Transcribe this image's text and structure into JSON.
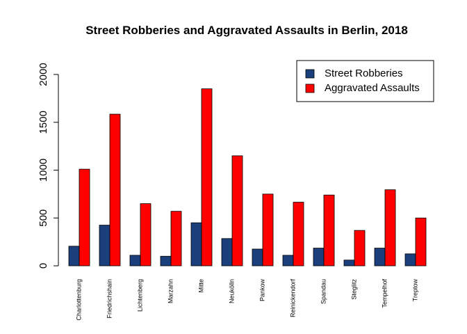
{
  "chart_data": {
    "type": "bar",
    "title": "Street Robberies and Aggravated Assaults in Berlin, 2018",
    "xlabel": "",
    "ylabel": "",
    "ylim": [
      0,
      2000
    ],
    "yticks": [
      "0",
      "500",
      "1000",
      "1500",
      "2000"
    ],
    "grid": false,
    "legend_position": "top-right",
    "categories": [
      "Charlottenburg",
      "Friedrichshain",
      "Lichtenberg",
      "Marzahn",
      "Mitte",
      "Neukölln",
      "Pankow",
      "Reinickendorf",
      "Spandau",
      "Steglitz",
      "Tempelhof",
      "Treptow"
    ],
    "series": [
      {
        "name": "Street Robberies",
        "color": "#1a3f7a",
        "values": [
          205,
          425,
          110,
          100,
          450,
          285,
          175,
          110,
          185,
          60,
          185,
          125
        ]
      },
      {
        "name": "Aggravated Assaults",
        "color": "#ff0000",
        "values": [
          1010,
          1585,
          650,
          570,
          1850,
          1150,
          750,
          665,
          740,
          370,
          795,
          500
        ]
      }
    ]
  }
}
